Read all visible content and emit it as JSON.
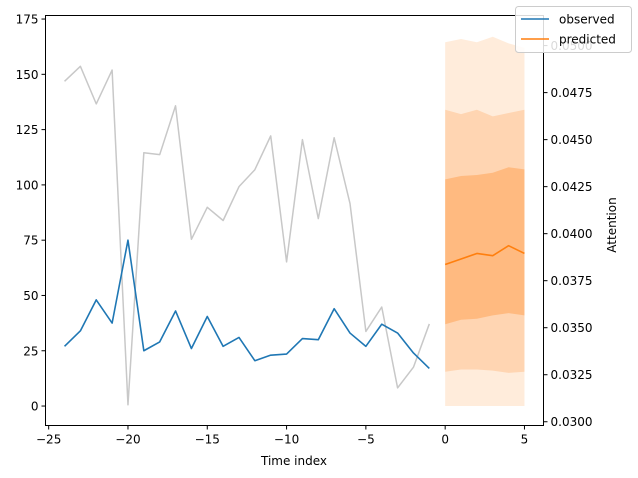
{
  "chart_data": {
    "type": "line",
    "xlabel": "Time index",
    "ylabel": "",
    "y2label": "Attention",
    "xlim": [
      -25.2,
      6.2
    ],
    "ylim": [
      -8.8,
      176.6
    ],
    "y2lim": [
      0.0298,
      0.0516
    ],
    "x_ticks": [
      -25,
      -20,
      -15,
      -10,
      -5,
      0,
      5
    ],
    "y_ticks": [
      0,
      25,
      50,
      75,
      100,
      125,
      150,
      175
    ],
    "y2_ticks": [
      0.03,
      0.0325,
      0.035,
      0.0375,
      0.04,
      0.0425,
      0.045,
      0.0475,
      0.05
    ],
    "y2_tick_labels": [
      "0.0300",
      "0.0325",
      "0.0350",
      "0.0375",
      "0.0400",
      "0.0425",
      "0.0450",
      "0.0475",
      "0.0500"
    ],
    "legend": {
      "placement": "top-right",
      "entries": [
        {
          "name": "observed",
          "color": "#1f77b4"
        },
        {
          "name": "predicted",
          "color": "#ff7f0e"
        }
      ]
    },
    "series": [
      {
        "name": "observed",
        "axis": "left",
        "color": "#1f77b4",
        "x": [
          -24,
          -23,
          -22,
          -21,
          -20,
          -19,
          -18,
          -17,
          -16,
          -15,
          -14,
          -13,
          -12,
          -11,
          -10,
          -9,
          -8,
          -7,
          -6,
          -5,
          -4,
          -3,
          -2,
          -1
        ],
        "values": [
          27,
          34,
          48,
          37.5,
          75,
          25,
          29,
          43,
          26,
          40.5,
          27,
          31,
          20.5,
          23,
          23.5,
          30.5,
          30,
          44,
          33,
          27,
          37,
          33,
          24,
          17
        ]
      },
      {
        "name": "attention",
        "axis": "right",
        "color": "#c8c8c8",
        "x": [
          -24,
          -23,
          -22,
          -21,
          -20,
          -19,
          -18,
          -17,
          -16,
          -15,
          -14,
          -13,
          -12,
          -11,
          -10,
          -9,
          -8,
          -7,
          -6,
          -5,
          -4,
          -3,
          -2,
          -1
        ],
        "values": [
          0.0481,
          0.0489,
          0.0469,
          0.0487,
          0.0309,
          0.0443,
          0.0442,
          0.0468,
          0.0397,
          0.0414,
          0.0407,
          0.0425,
          0.0434,
          0.0452,
          0.0385,
          0.045,
          0.0408,
          0.0451,
          0.0416,
          0.0348,
          0.0361,
          0.0318,
          0.0329,
          0.0352
        ]
      },
      {
        "name": "predicted",
        "axis": "left",
        "color": "#ff7f0e",
        "x": [
          0,
          1,
          2,
          3,
          4,
          5
        ],
        "values": [
          64,
          66.5,
          69,
          68,
          72.5,
          69
        ]
      }
    ],
    "quantile_bands": [
      {
        "opacity": 0.15,
        "lower": [
          0,
          0,
          0,
          0,
          0,
          0
        ],
        "upper": [
          164.5,
          166,
          164.5,
          167,
          164,
          162
        ]
      },
      {
        "opacity": 0.2,
        "lower": [
          15.5,
          16.5,
          16.5,
          16,
          15,
          15.5
        ],
        "upper": [
          134,
          132,
          134,
          131,
          132.5,
          134
        ]
      },
      {
        "opacity": 0.3,
        "lower": [
          37,
          39,
          39.5,
          41,
          42,
          41
        ],
        "upper": [
          102.5,
          104,
          104.5,
          105.5,
          108,
          107
        ]
      }
    ]
  }
}
